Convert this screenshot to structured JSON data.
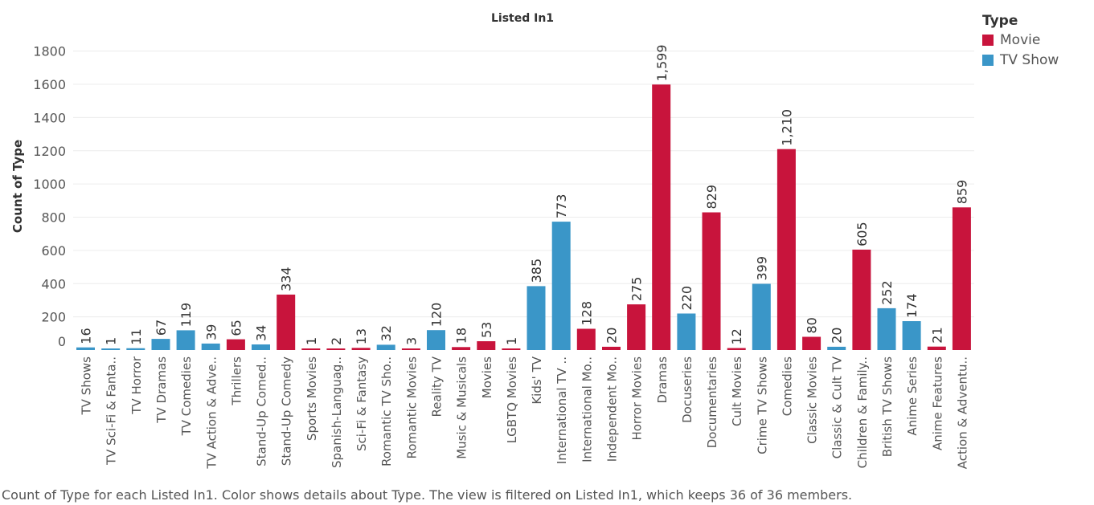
{
  "legend": {
    "title": "Type",
    "items": [
      {
        "label": "Movie",
        "color": "#c8143c"
      },
      {
        "label": "TV Show",
        "color": "#3a96c8"
      }
    ]
  },
  "caption": "Count of Type for each Listed In1.  Color shows details about Type. The view is filtered on Listed In1, which keeps 36 of 36 members.",
  "chart_data": {
    "type": "bar",
    "title": "Listed In1",
    "xlabel": "",
    "ylabel": "Count of Type",
    "ylim": [
      0,
      1900
    ],
    "yticks": [
      0,
      200,
      400,
      600,
      800,
      1000,
      1200,
      1400,
      1600,
      1800
    ],
    "grid": true,
    "legend_position": "top-right",
    "categories": [
      "TV Shows",
      "TV Sci-Fi & Fanta..",
      "TV Horror",
      "TV Dramas",
      "TV Comedies",
      "TV Action & Adve..",
      "Thrillers",
      "Stand-Up Comed..",
      "Stand-Up Comedy",
      "Sports Movies",
      "Spanish-Languag..",
      "Sci-Fi & Fantasy",
      "Romantic TV Sho..",
      "Romantic Movies",
      "Reality TV",
      "Music & Musicals",
      "Movies",
      "LGBTQ Movies",
      "Kids' TV",
      "International TV ..",
      "International Mo..",
      "Independent Mo..",
      "Horror Movies",
      "Dramas",
      "Docuseries",
      "Documentaries",
      "Cult Movies",
      "Crime TV Shows",
      "Comedies",
      "Classic Movies",
      "Classic & Cult TV",
      "Children & Family..",
      "British TV Shows",
      "Anime Series",
      "Anime Features",
      "Action & Adventu.."
    ],
    "values": [
      16,
      1,
      11,
      67,
      119,
      39,
      65,
      34,
      334,
      1,
      2,
      13,
      32,
      3,
      120,
      18,
      53,
      1,
      385,
      773,
      128,
      20,
      275,
      1599,
      220,
      829,
      12,
      399,
      1210,
      80,
      20,
      605,
      252,
      174,
      21,
      859
    ],
    "value_labels": [
      "16",
      "1",
      "11",
      "67",
      "119",
      "39",
      "65",
      "34",
      "334",
      "1",
      "2",
      "13",
      "32",
      "3",
      "120",
      "18",
      "53",
      "1",
      "385",
      "773",
      "128",
      "20",
      "275",
      "1,599",
      "220",
      "829",
      "12",
      "399",
      "1,210",
      "80",
      "20",
      "605",
      "252",
      "174",
      "21",
      "859"
    ],
    "types": [
      "TV Show",
      "TV Show",
      "TV Show",
      "TV Show",
      "TV Show",
      "TV Show",
      "Movie",
      "TV Show",
      "Movie",
      "Movie",
      "Movie",
      "Movie",
      "TV Show",
      "Movie",
      "TV Show",
      "Movie",
      "Movie",
      "Movie",
      "TV Show",
      "TV Show",
      "Movie",
      "Movie",
      "Movie",
      "Movie",
      "TV Show",
      "Movie",
      "Movie",
      "TV Show",
      "Movie",
      "Movie",
      "TV Show",
      "Movie",
      "TV Show",
      "TV Show",
      "Movie",
      "Movie"
    ]
  }
}
